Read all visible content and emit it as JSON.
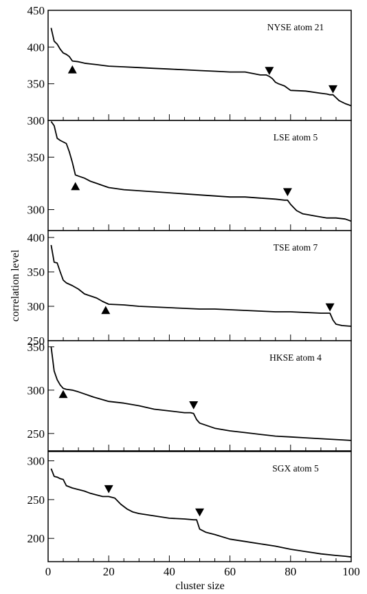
{
  "chart_data": {
    "type": "line",
    "xlabel": "cluster size",
    "ylabel": "correlation level",
    "xlim": [
      0,
      100
    ],
    "xticks": [
      0,
      20,
      40,
      60,
      80,
      100
    ],
    "colors": {
      "line": "#000000",
      "frame": "#000000",
      "background": "#ffffff"
    },
    "panels": [
      {
        "label": "NYSE atom 21",
        "ylim": [
          300,
          450
        ],
        "yticks": [
          300,
          350,
          400,
          450
        ],
        "x": [
          1,
          2,
          3,
          4,
          5,
          6,
          7,
          8,
          10,
          12,
          14,
          16,
          18,
          20,
          25,
          30,
          35,
          40,
          45,
          50,
          55,
          60,
          65,
          70,
          72,
          73,
          74,
          75,
          76,
          78,
          80,
          85,
          90,
          92,
          93,
          94,
          95,
          96,
          98,
          100
        ],
        "y": [
          426,
          408,
          404,
          397,
          392,
          390,
          387,
          381,
          380,
          378,
          377,
          376,
          375,
          374,
          373,
          372,
          371,
          370,
          369,
          368,
          367,
          366,
          366,
          362,
          362,
          360,
          357,
          352,
          350,
          347,
          341,
          340,
          337,
          336,
          335,
          335,
          331,
          327,
          323,
          320
        ],
        "markers": [
          {
            "x": 8,
            "y": 369,
            "dir": "up"
          },
          {
            "x": 73,
            "y": 368,
            "dir": "down"
          },
          {
            "x": 94,
            "y": 343,
            "dir": "down"
          }
        ]
      },
      {
        "label": "LSE atom 5",
        "ylim": [
          280,
          385
        ],
        "yticks": [
          300,
          350
        ],
        "x": [
          1,
          2,
          3,
          4,
          6,
          7,
          8,
          9,
          10,
          12,
          14,
          16,
          18,
          20,
          25,
          30,
          35,
          40,
          45,
          50,
          55,
          60,
          65,
          70,
          75,
          78,
          79,
          80,
          81,
          82,
          84,
          86,
          88,
          90,
          92,
          95,
          98,
          100
        ],
        "y": [
          384,
          380,
          368,
          366,
          363,
          355,
          345,
          333,
          332,
          330,
          327,
          325,
          323,
          321,
          319,
          318,
          317,
          316,
          315,
          314,
          313,
          312,
          312,
          311,
          310,
          309,
          309,
          305,
          302,
          299,
          296,
          295,
          294,
          293,
          292,
          292,
          291,
          289
        ],
        "markers": [
          {
            "x": 9,
            "y": 322,
            "dir": "up"
          },
          {
            "x": 79,
            "y": 317,
            "dir": "down"
          }
        ]
      },
      {
        "label": "TSE atom 7",
        "ylim": [
          250,
          410
        ],
        "yticks": [
          250,
          300,
          350,
          400
        ],
        "x": [
          1,
          2,
          3,
          4,
          5,
          6,
          8,
          10,
          12,
          14,
          16,
          18,
          19,
          20,
          25,
          30,
          35,
          40,
          45,
          50,
          55,
          60,
          65,
          70,
          75,
          80,
          85,
          90,
          92,
          93,
          94,
          95,
          97,
          100
        ],
        "y": [
          389,
          364,
          363,
          350,
          338,
          334,
          330,
          325,
          318,
          315,
          312,
          307,
          305,
          303,
          302,
          300,
          299,
          298,
          297,
          296,
          296,
          295,
          294,
          293,
          292,
          292,
          291,
          290,
          290,
          290,
          280,
          274,
          272,
          271
        ],
        "markers": [
          {
            "x": 19,
            "y": 294,
            "dir": "up"
          },
          {
            "x": 93,
            "y": 299,
            "dir": "down"
          }
        ]
      },
      {
        "label": "HKSE atom 4",
        "ylim": [
          230,
          357
        ],
        "yticks": [
          250,
          300,
          350
        ],
        "x": [
          1,
          2,
          3,
          4,
          5,
          6,
          8,
          10,
          15,
          20,
          25,
          30,
          35,
          40,
          45,
          47,
          48,
          49,
          50,
          55,
          60,
          65,
          70,
          75,
          80,
          85,
          90,
          95,
          100
        ],
        "y": [
          350,
          322,
          312,
          306,
          302,
          301,
          300,
          298,
          292,
          287,
          285,
          282,
          278,
          276,
          274,
          274,
          273,
          266,
          262,
          256,
          253,
          251,
          249,
          247,
          246,
          245,
          244,
          243,
          242
        ],
        "markers": [
          {
            "x": 5,
            "y": 295,
            "dir": "up"
          },
          {
            "x": 48,
            "y": 283,
            "dir": "down"
          }
        ]
      },
      {
        "label": "SGX atom 5",
        "ylim": [
          170,
          312
        ],
        "yticks": [
          200,
          250,
          300
        ],
        "x": [
          1,
          2,
          3,
          4,
          5,
          6,
          8,
          10,
          12,
          14,
          16,
          18,
          20,
          22,
          24,
          26,
          28,
          30,
          35,
          40,
          45,
          48,
          49,
          50,
          52,
          55,
          60,
          65,
          70,
          75,
          80,
          85,
          90,
          95,
          98,
          100
        ],
        "y": [
          290,
          280,
          279,
          277,
          276,
          268,
          265,
          263,
          261,
          258,
          256,
          254,
          254,
          252,
          244,
          238,
          234,
          232,
          229,
          226,
          225,
          224,
          224,
          212,
          208,
          205,
          199,
          196,
          193,
          190,
          186,
          183,
          180,
          178,
          177,
          176
        ],
        "markers": [
          {
            "x": 20,
            "y": 264,
            "dir": "down"
          },
          {
            "x": 50,
            "y": 234,
            "dir": "down"
          }
        ]
      }
    ]
  }
}
